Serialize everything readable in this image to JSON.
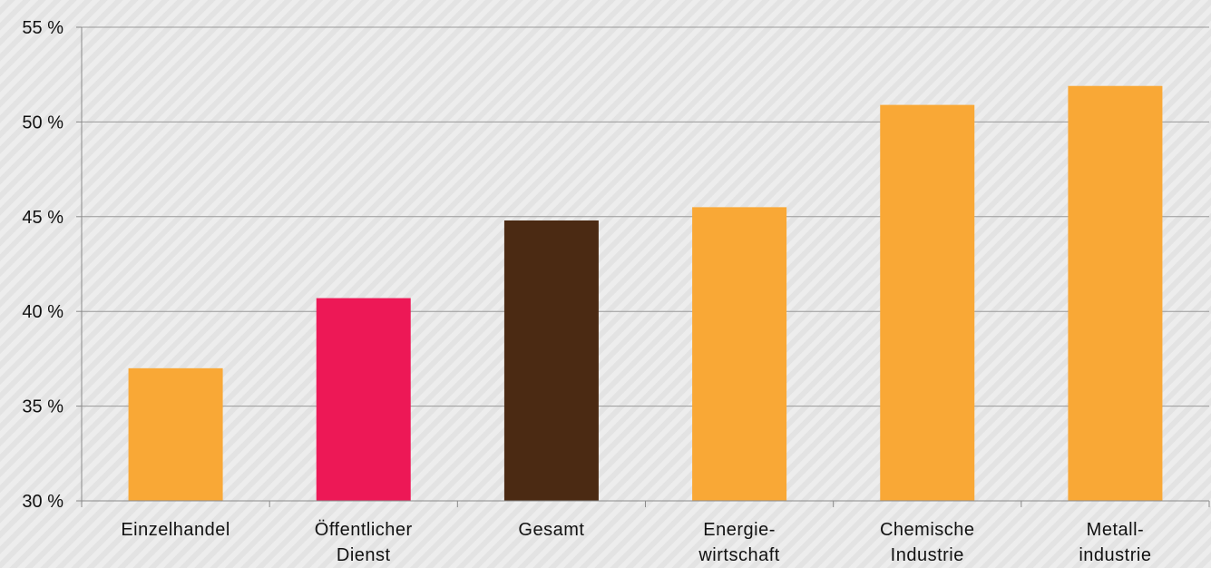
{
  "chart_data": {
    "type": "bar",
    "title": "",
    "xlabel": "",
    "ylabel": "",
    "ylim": [
      30,
      55
    ],
    "yticks": [
      30,
      35,
      40,
      45,
      50,
      55
    ],
    "ytick_labels": [
      "30 %",
      "35 %",
      "40 %",
      "45 %",
      "50 %",
      "55 %"
    ],
    "grid": true,
    "legend": "none",
    "categories": [
      [
        "Einzelhandel"
      ],
      [
        "Öffentlicher",
        "Dienst"
      ],
      [
        "Gesamt"
      ],
      [
        "Energie-",
        "wirtschaft"
      ],
      [
        "Chemische",
        "Industrie"
      ],
      [
        "Metall-",
        "industrie"
      ]
    ],
    "values": [
      37.0,
      40.7,
      44.8,
      45.5,
      50.9,
      51.9
    ],
    "colors": [
      "#f9a836",
      "#ed1856",
      "#4b2a13",
      "#f9a836",
      "#f9a836",
      "#f9a836"
    ],
    "gridline_color": "#9a9a9a",
    "axis_color": "#8a8a8a"
  }
}
